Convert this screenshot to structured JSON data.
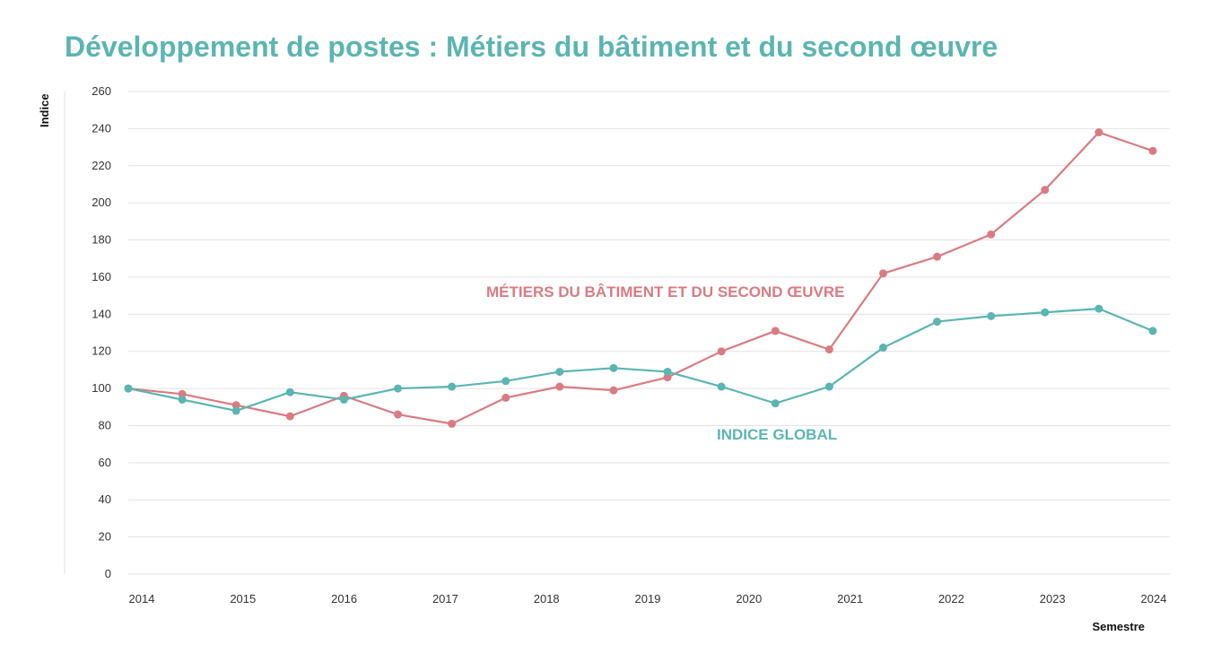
{
  "chart_data": {
    "type": "line",
    "title": "Développement de postes : Métiers du bâtiment et du second œuvre",
    "ylabel": "Indice",
    "xlabel": "Semestre",
    "ylim": [
      0,
      260
    ],
    "yticks": [
      0,
      20,
      40,
      60,
      80,
      100,
      120,
      140,
      160,
      180,
      200,
      220,
      240,
      260
    ],
    "x_tick_labels": [
      "2014",
      "2015",
      "2016",
      "2017",
      "2018",
      "2019",
      "2020",
      "2021",
      "2022",
      "2023",
      "2024"
    ],
    "grid": true,
    "series": [
      {
        "name": "MÉTIERS DU BÂTIMENT ET DU SECOND ŒUVRE",
        "color": "#d97b83",
        "values": [
          100,
          97,
          91,
          85,
          96,
          86,
          81,
          95,
          101,
          99,
          106,
          120,
          131,
          121,
          162,
          171,
          183,
          207,
          238,
          228
        ]
      },
      {
        "name": "INDICE GLOBAL",
        "color": "#5bb5b1",
        "values": [
          100,
          94,
          88,
          98,
          94,
          100,
          101,
          104,
          109,
          111,
          109,
          101,
          92,
          101,
          122,
          136,
          139,
          141,
          143,
          131
        ]
      }
    ]
  }
}
